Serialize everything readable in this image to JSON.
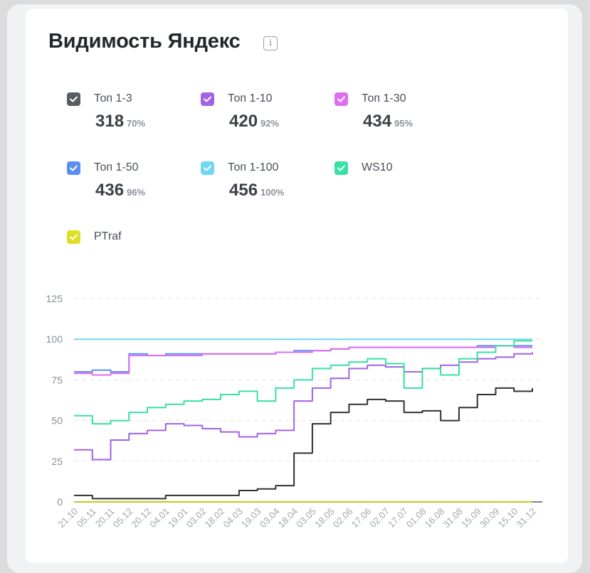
{
  "title": "Видимость Яндекс",
  "info_icon": "i",
  "legend": [
    {
      "label": "Топ 1-3",
      "value": "318",
      "pct": "70%",
      "color": "#585c63"
    },
    {
      "label": "Топ 1-10",
      "value": "420",
      "pct": "92%",
      "color": "#a262e6"
    },
    {
      "label": "Топ 1-30",
      "value": "434",
      "pct": "95%",
      "color": "#dd6ef0"
    },
    {
      "label": "Топ 1-50",
      "value": "436",
      "pct": "96%",
      "color": "#5b8ef0"
    },
    {
      "label": "Топ 1-100",
      "value": "456",
      "pct": "100%",
      "color": "#6fd8f0"
    },
    {
      "label": "WS10",
      "value": "",
      "pct": "",
      "color": "#38e0a3"
    },
    {
      "label": "PTraf",
      "value": "",
      "pct": "",
      "color": "#dede26"
    }
  ],
  "chart_data": {
    "type": "line",
    "title": "",
    "xlabel": "",
    "ylabel": "",
    "ylim": [
      0,
      125
    ],
    "yticks": [
      "0",
      "25",
      "50",
      "75",
      "100",
      "125"
    ],
    "x_ticks": [
      "21.10",
      "05.11",
      "20.11",
      "05.12",
      "20.12",
      "04.01",
      "19.01",
      "03.02",
      "18.02",
      "04.03",
      "19.03",
      "03.04",
      "18.04",
      "03.05",
      "18.05",
      "02.06",
      "17.06",
      "02.07",
      "17.07",
      "01.08",
      "16.08",
      "31.08",
      "15.09",
      "30.09",
      "15.10",
      "31.12"
    ],
    "series": [
      {
        "name": "Топ 1-100",
        "color": "#6fd8f0",
        "values": [
          100,
          100,
          100,
          100,
          100,
          100,
          100,
          100,
          100,
          100,
          100,
          100,
          100,
          100,
          100,
          100,
          100,
          100,
          100,
          100,
          100,
          100,
          100,
          100,
          100,
          100
        ]
      },
      {
        "name": "Топ 1-50",
        "color": "#5b8ef0",
        "values": [
          80,
          81,
          80,
          91,
          90,
          91,
          91,
          91,
          91,
          91,
          91,
          92,
          93,
          93,
          94,
          95,
          95,
          95,
          95,
          95,
          95,
          95,
          96,
          96,
          96,
          96
        ]
      },
      {
        "name": "Топ 1-30",
        "color": "#dd6ef0",
        "values": [
          79,
          78,
          79,
          90,
          90,
          90,
          90,
          91,
          91,
          91,
          91,
          92,
          92,
          93,
          94,
          95,
          95,
          95,
          95,
          95,
          95,
          95,
          95,
          96,
          95,
          95
        ]
      },
      {
        "name": "Топ 1-10",
        "color": "#a262e6",
        "values": [
          32,
          26,
          38,
          42,
          44,
          48,
          47,
          45,
          43,
          40,
          42,
          44,
          62,
          70,
          76,
          82,
          84,
          83,
          80,
          82,
          84,
          86,
          88,
          89,
          91,
          92
        ]
      },
      {
        "name": "WS10",
        "color": "#38e0a3",
        "values": [
          53,
          48,
          50,
          55,
          58,
          60,
          62,
          63,
          66,
          68,
          62,
          70,
          75,
          82,
          84,
          86,
          88,
          85,
          70,
          82,
          78,
          88,
          92,
          96,
          99,
          99
        ]
      },
      {
        "name": "Топ 1-3",
        "color": "#2f3135",
        "values": [
          4,
          2,
          2,
          2,
          2,
          4,
          4,
          4,
          4,
          7,
          8,
          10,
          30,
          48,
          55,
          60,
          63,
          62,
          55,
          56,
          50,
          58,
          66,
          70,
          68,
          70
        ]
      },
      {
        "name": "PTraf",
        "color": "#c8c81e",
        "values": [
          0,
          0,
          0,
          0,
          0,
          0,
          0,
          0,
          0,
          0,
          0,
          0,
          0,
          0,
          0,
          0,
          0,
          0,
          0,
          0,
          0,
          0,
          0,
          0,
          0,
          0
        ]
      }
    ]
  }
}
